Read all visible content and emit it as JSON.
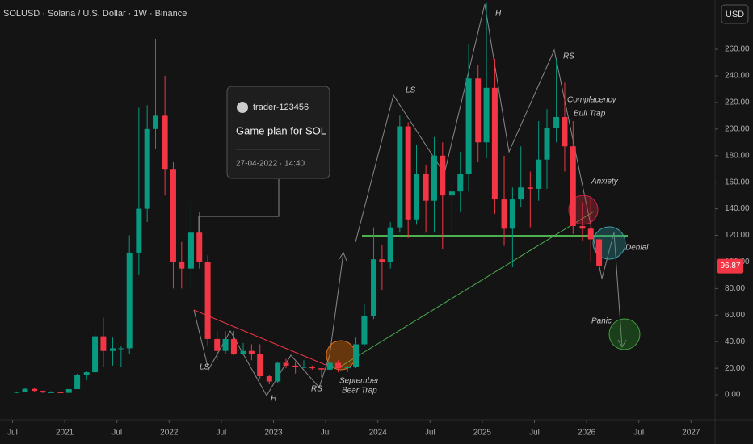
{
  "header": {
    "title": "SOLUSD · Solana / U.S. Dollar · 1W · Binance",
    "currency": "USD"
  },
  "card": {
    "user": "trader-123456",
    "headline": "Game plan for SOL",
    "timestamp": "27-04-2022 · 14:40"
  },
  "chart_data": {
    "type": "candlestick",
    "x": [
      2020.54,
      2020.62,
      2020.71,
      2020.79,
      2020.87,
      2020.96,
      2021.04,
      2021.12,
      2021.21,
      2021.29,
      2021.37,
      2021.46,
      2021.54,
      2021.62,
      2021.71,
      2021.79,
      2021.87,
      2021.96,
      2022.04,
      2022.12,
      2022.21,
      2022.29,
      2022.37,
      2022.46,
      2022.54,
      2022.62,
      2022.71,
      2022.79,
      2022.87,
      2022.96,
      2023.04,
      2023.12,
      2023.21,
      2023.29,
      2023.37,
      2023.46,
      2023.54,
      2023.62,
      2023.71,
      2023.79,
      2023.87,
      2023.96,
      2024.04,
      2024.12,
      2024.21,
      2024.29,
      2024.37,
      2024.46,
      2024.54,
      2024.62,
      2024.71,
      2024.79,
      2024.87,
      2024.96,
      2025.04,
      2025.12,
      2025.21,
      2025.29,
      2025.37,
      2025.46,
      2025.54,
      2025.62,
      2025.71,
      2025.79,
      2025.87,
      2025.96,
      2026.04,
      2026.12
    ],
    "open": [
      1.5,
      2.3,
      4.5,
      3.0,
      1.8,
      1.9,
      1.5,
      4.3,
      15,
      17,
      44,
      33,
      35,
      35,
      107,
      140,
      200,
      210,
      170,
      100,
      95,
      122,
      100,
      42,
      33,
      42,
      31,
      33,
      31,
      14,
      10,
      24,
      22,
      21,
      21,
      20,
      19,
      24,
      20,
      21,
      38,
      59,
      102,
      100,
      126,
      202,
      132,
      166,
      146,
      180,
      150,
      153,
      166,
      238,
      190,
      231,
      147,
      125,
      147,
      156,
      155,
      177,
      201,
      209,
      187,
      127,
      125,
      117
    ],
    "high": [
      2.5,
      4.9,
      4.9,
      3.2,
      2.8,
      2.3,
      4.5,
      16,
      18,
      48,
      58,
      43,
      37,
      120,
      216,
      218,
      268,
      240,
      175,
      115,
      145,
      138,
      105,
      48,
      48,
      48,
      39,
      38,
      38,
      15,
      25,
      27,
      25,
      26,
      22,
      20,
      32,
      26,
      22,
      43,
      68,
      126,
      113,
      130,
      210,
      205,
      188,
      173,
      194,
      190,
      160,
      183,
      264,
      248,
      295,
      253,
      180,
      156,
      187,
      168,
      206,
      215,
      253,
      235,
      206,
      145,
      148,
      120
    ],
    "low": [
      1.2,
      2.1,
      2.4,
      1.3,
      1.8,
      1.4,
      1.4,
      4.2,
      11,
      16,
      21,
      22,
      21,
      31,
      90,
      130,
      185,
      150,
      80,
      80,
      80,
      95,
      37,
      26,
      31,
      30,
      30,
      26,
      12,
      8,
      9,
      20,
      16,
      20,
      19,
      13,
      18,
      17,
      17,
      20,
      37,
      57,
      79,
      95,
      122,
      118,
      128,
      122,
      122,
      110,
      121,
      138,
      153,
      175,
      178,
      136,
      112,
      96,
      141,
      126,
      146,
      155,
      190,
      168,
      121,
      116,
      100,
      92
    ],
    "close": [
      2.3,
      4.5,
      3.0,
      1.8,
      1.9,
      1.5,
      4.3,
      15,
      17,
      44,
      33,
      35,
      35,
      107,
      140,
      200,
      210,
      170,
      100,
      95,
      122,
      100,
      42,
      33,
      42,
      31,
      33,
      31,
      14,
      10,
      24,
      22,
      21,
      21,
      20,
      19,
      24,
      20,
      21,
      38,
      59,
      102,
      100,
      126,
      202,
      132,
      166,
      146,
      180,
      150,
      153,
      166,
      238,
      190,
      231,
      147,
      125,
      147,
      156,
      155,
      177,
      201,
      209,
      187,
      127,
      125,
      117,
      96.87
    ],
    "colors": {
      "up": "#089981",
      "down": "#f23645"
    },
    "xlim": [
      2020.38,
      2027.23
    ],
    "xticks": [
      {
        "value": 2020.5,
        "label": "Jul"
      },
      {
        "value": 2021,
        "label": "2021"
      },
      {
        "value": 2021.5,
        "label": "Jul"
      },
      {
        "value": 2022,
        "label": "2022"
      },
      {
        "value": 2022.5,
        "label": "Jul"
      },
      {
        "value": 2023,
        "label": "2023"
      },
      {
        "value": 2023.5,
        "label": "Jul"
      },
      {
        "value": 2024,
        "label": "2024"
      },
      {
        "value": 2024.5,
        "label": "Jul"
      },
      {
        "value": 2025,
        "label": "2025"
      },
      {
        "value": 2025.5,
        "label": "Jul"
      },
      {
        "value": 2026,
        "label": "2026"
      },
      {
        "value": 2026.5,
        "label": "Jul"
      },
      {
        "value": 2027,
        "label": "2027"
      }
    ],
    "ylim": [
      -18.8,
      297.1
    ],
    "yticks": [
      {
        "value": 0,
        "label": "0.00"
      },
      {
        "value": 20,
        "label": "20.00"
      },
      {
        "value": 40,
        "label": "40.00"
      },
      {
        "value": 60,
        "label": "60.00"
      },
      {
        "value": 80,
        "label": "80.00"
      },
      {
        "value": 100,
        "label": "100.00"
      },
      {
        "value": 120,
        "label": "120.00"
      },
      {
        "value": 140,
        "label": "140.00"
      },
      {
        "value": 160,
        "label": "160.00"
      },
      {
        "value": 180,
        "label": "180.00"
      },
      {
        "value": 200,
        "label": "200.00"
      },
      {
        "value": 220,
        "label": "220.00"
      },
      {
        "value": 240,
        "label": "240.00"
      },
      {
        "value": 260,
        "label": "260.00"
      }
    ],
    "last_price": 96.87,
    "annotations": [
      "H",
      "RS",
      "LS",
      "Complacency",
      "Bull Trap",
      "Anxiety",
      "Denial",
      "Panic",
      "LS",
      "H",
      "RS",
      "September",
      "Bear Trap"
    ]
  }
}
